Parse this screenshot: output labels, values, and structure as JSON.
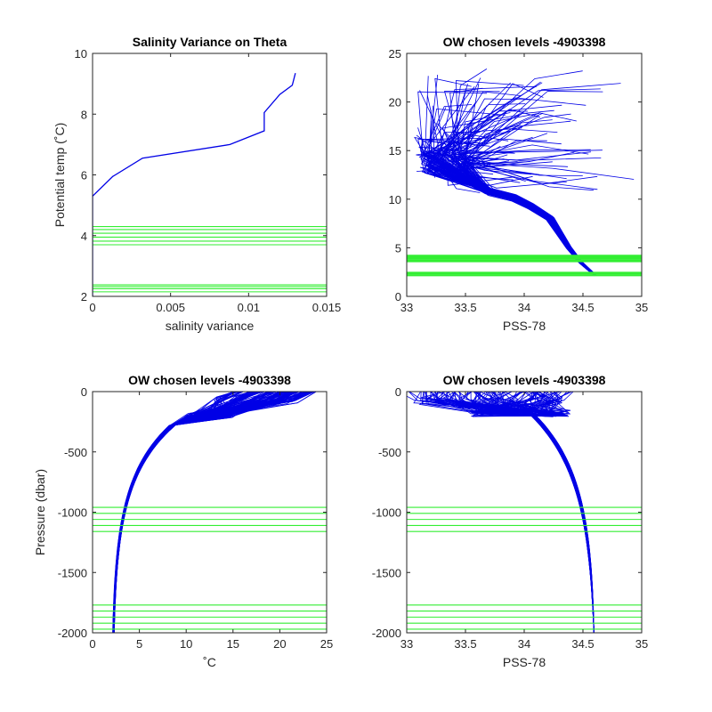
{
  "chart_data": [
    {
      "type": "line",
      "title": "Salinity Variance on Theta",
      "xlabel": "salinity variance",
      "ylabel": "Potential temp (˚C)",
      "xlim": [
        0,
        0.015
      ],
      "ylim": [
        2,
        10
      ],
      "xticks": [
        "0",
        "0.005",
        "0.01",
        "0.015"
      ],
      "yticks": [
        "2",
        "4",
        "6",
        "8",
        "10"
      ],
      "colors": {
        "profile": "#0000e6",
        "levels": "#33ee33"
      },
      "series": [
        {
          "x": [
            0.0,
            0.0,
            0.0,
            0.0,
            0.0,
            0.0,
            0.0,
            0.0,
            0.0013,
            0.0032,
            0.0088,
            0.011,
            0.011,
            0.012,
            0.0128,
            0.013
          ],
          "y": [
            2.0,
            2.5,
            3.0,
            3.5,
            4.0,
            4.5,
            5.0,
            5.3,
            5.95,
            6.55,
            7.0,
            7.45,
            8.05,
            8.65,
            8.95,
            9.35
          ]
        }
      ],
      "hlines": [
        2.15,
        2.25,
        2.32,
        2.38,
        3.7,
        3.82,
        3.95,
        4.08,
        4.2,
        4.3
      ]
    },
    {
      "type": "line",
      "title": "OW chosen levels -4903398",
      "xlabel": "PSS-78",
      "ylabel": "",
      "xlim": [
        33,
        35
      ],
      "ylim": [
        0,
        25
      ],
      "xticks": [
        "33",
        "33.5",
        "34",
        "34.5",
        "35"
      ],
      "yticks": [
        "0",
        "5",
        "10",
        "15",
        "20",
        "25"
      ],
      "note_profiles": "many salinity-temperature profiles (dense bundle)",
      "hlines": [
        2.15,
        2.3,
        2.45,
        3.6,
        3.75,
        3.9,
        4.05,
        4.2
      ]
    },
    {
      "type": "line",
      "title": "OW chosen levels -4903398",
      "xlabel": "˚C",
      "ylabel": "Pressure (dbar)",
      "xlim": [
        0,
        25
      ],
      "ylim": [
        -2000,
        0
      ],
      "xticks": [
        "0",
        "5",
        "10",
        "15",
        "20",
        "25"
      ],
      "yticks": [
        "-2000",
        "-1500",
        "-1000",
        "-500",
        "0"
      ],
      "note_profiles": "many temperature-pressure profiles (dense bundle)",
      "hlines": [
        -960,
        -1010,
        -1060,
        -1110,
        -1160,
        -1770,
        -1820,
        -1870,
        -1920,
        -1970
      ]
    },
    {
      "type": "line",
      "title": "OW chosen levels -4903398",
      "xlabel": "PSS-78",
      "ylabel": "",
      "xlim": [
        33,
        35
      ],
      "ylim": [
        -2000,
        0
      ],
      "xticks": [
        "33",
        "33.5",
        "34",
        "34.5",
        "35"
      ],
      "yticks": [
        "-2000",
        "-1500",
        "-1000",
        "-500",
        "0"
      ],
      "note_profiles": "many salinity-pressure profiles (dense bundle)",
      "hlines": [
        -960,
        -1010,
        -1060,
        -1110,
        -1160,
        -1770,
        -1820,
        -1870,
        -1920,
        -1970
      ]
    }
  ]
}
